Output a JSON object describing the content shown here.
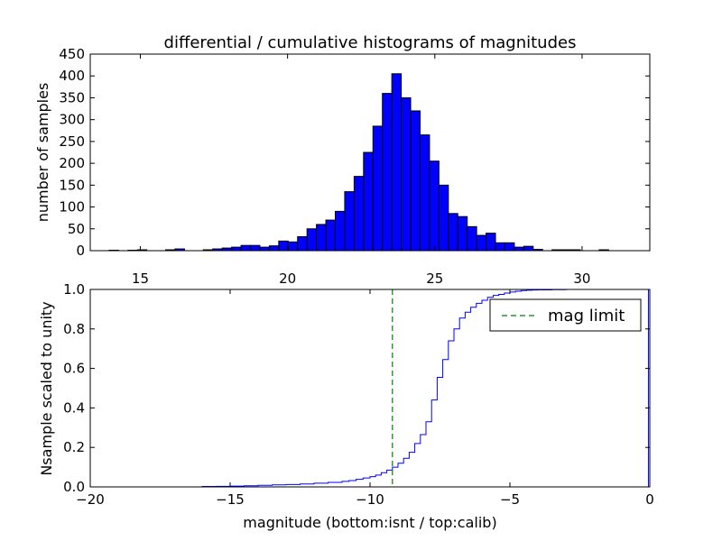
{
  "title": "differential / cumulative histograms of magnitudes",
  "colors": {
    "bar_fill": "#0000ff",
    "step_line": "#0000ff",
    "limit_line": "#008000"
  },
  "chart_data": [
    {
      "type": "bar",
      "title": "differential / cumulative histograms of magnitudes",
      "ylabel": "number of samples",
      "xlabel": "",
      "xlim": [
        13.3,
        32.3
      ],
      "ylim": [
        0,
        450
      ],
      "xticks": [
        15,
        20,
        25,
        30
      ],
      "yticks": [
        0,
        50,
        100,
        150,
        200,
        250,
        300,
        350,
        400,
        450
      ],
      "x_tick_position": "bottom",
      "bin_width": 0.32,
      "bin_start": 13.3,
      "counts": [
        0,
        0,
        1,
        0,
        1,
        2,
        0,
        0,
        2,
        4,
        0,
        0,
        2,
        4,
        6,
        8,
        12,
        12,
        8,
        11,
        22,
        20,
        32,
        50,
        60,
        70,
        90,
        135,
        170,
        225,
        285,
        360,
        405,
        350,
        320,
        265,
        205,
        150,
        85,
        78,
        55,
        35,
        40,
        18,
        18,
        8,
        10,
        3,
        0,
        2,
        2,
        2,
        0,
        0,
        2,
        0,
        0,
        0,
        0,
        0
      ],
      "grid": false,
      "legend": null
    },
    {
      "type": "line",
      "ylabel": "Nsample scaled to unity",
      "xlabel": "magnitude (bottom:isnt / top:calib)",
      "xlim": [
        -20,
        0
      ],
      "ylim": [
        0.0,
        1.0
      ],
      "xticks": [
        -20,
        -15,
        -10,
        -5,
        0
      ],
      "yticks": [
        0.0,
        0.2,
        0.4,
        0.6,
        0.8,
        1.0
      ],
      "step_x": [
        -20,
        -16,
        -15.5,
        -15,
        -14.5,
        -14,
        -13.5,
        -13,
        -12.5,
        -12,
        -11.5,
        -11,
        -10.75,
        -10.5,
        -10.25,
        -10,
        -9.8,
        -9.6,
        -9.4,
        -9.2,
        -9,
        -8.8,
        -8.6,
        -8.4,
        -8.2,
        -8,
        -7.8,
        -7.6,
        -7.4,
        -7.2,
        -7,
        -6.8,
        -6.6,
        -6.4,
        -6.2,
        -6,
        -5.8,
        -5.6,
        -5.4,
        -5.2,
        -5,
        -4.8,
        -4.6,
        -4.4,
        -4.2,
        -4,
        -3.5,
        -3,
        -2,
        -0.05
      ],
      "step_y": [
        0,
        0.002,
        0.003,
        0.004,
        0.006,
        0.008,
        0.01,
        0.012,
        0.015,
        0.019,
        0.023,
        0.028,
        0.032,
        0.038,
        0.045,
        0.052,
        0.06,
        0.072,
        0.085,
        0.1,
        0.12,
        0.145,
        0.175,
        0.22,
        0.265,
        0.33,
        0.44,
        0.555,
        0.645,
        0.74,
        0.8,
        0.855,
        0.885,
        0.91,
        0.93,
        0.945,
        0.96,
        0.97,
        0.975,
        0.982,
        0.987,
        0.991,
        0.994,
        0.996,
        0.997,
        0.998,
        0.999,
        1.0,
        1.0,
        1.0
      ],
      "series": [
        {
          "name": "mag limit",
          "x": -9.2,
          "style": "dashed-vertical"
        }
      ],
      "legend": {
        "location": "top-right",
        "entries": [
          "mag limit"
        ]
      },
      "grid": false
    }
  ],
  "top": {
    "ylabel": "number of samples",
    "yticks": [
      "0",
      "50",
      "100",
      "150",
      "200",
      "250",
      "300",
      "350",
      "400",
      "450"
    ],
    "xticks": [
      "15",
      "20",
      "25",
      "30"
    ]
  },
  "bottom": {
    "ylabel": "Nsample scaled to unity",
    "xlabel": "magnitude (bottom:isnt / top:calib)",
    "yticks": [
      "0.0",
      "0.2",
      "0.4",
      "0.6",
      "0.8",
      "1.0"
    ],
    "xticks": [
      "−20",
      "−15",
      "−10",
      "−5",
      "0"
    ],
    "legend_label": "mag limit"
  }
}
